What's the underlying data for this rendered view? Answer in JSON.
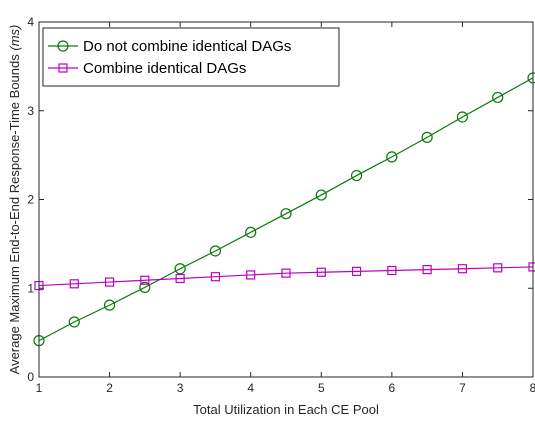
{
  "chart_data": {
    "type": "line",
    "title": "",
    "xlabel": "Total Utilization in Each CE Pool",
    "ylabel": "Average Maximum End-to-End Response-Time Bounds (ms)",
    "ylabel_main": "Average Maximum End-to-End Response-Time Bounds ",
    "ylabel_unit": "(ms)",
    "xlim": [
      1,
      8
    ],
    "ylim": [
      0,
      4
    ],
    "xticks": [
      1,
      2,
      3,
      4,
      5,
      6,
      7,
      8
    ],
    "yticks": [
      0,
      1,
      2,
      3,
      4
    ],
    "grid": false,
    "legend_position": "top-left",
    "x": [
      1,
      1.5,
      2,
      2.5,
      3,
      3.5,
      4,
      4.5,
      5,
      5.5,
      6,
      6.5,
      7,
      7.5,
      8
    ],
    "series": [
      {
        "name": "Do not combine identical DAGs",
        "color": "#0a7a0a",
        "marker": "circle",
        "values": [
          0.41,
          0.62,
          0.81,
          1.01,
          1.22,
          1.42,
          1.63,
          1.84,
          2.05,
          2.27,
          2.48,
          2.7,
          2.93,
          3.15,
          3.37
        ]
      },
      {
        "name": "Combine identical DAGs",
        "color": "#bf00bf",
        "marker": "square",
        "values": [
          1.03,
          1.05,
          1.07,
          1.09,
          1.11,
          1.13,
          1.15,
          1.17,
          1.18,
          1.19,
          1.2,
          1.21,
          1.22,
          1.23,
          1.24
        ]
      }
    ]
  }
}
